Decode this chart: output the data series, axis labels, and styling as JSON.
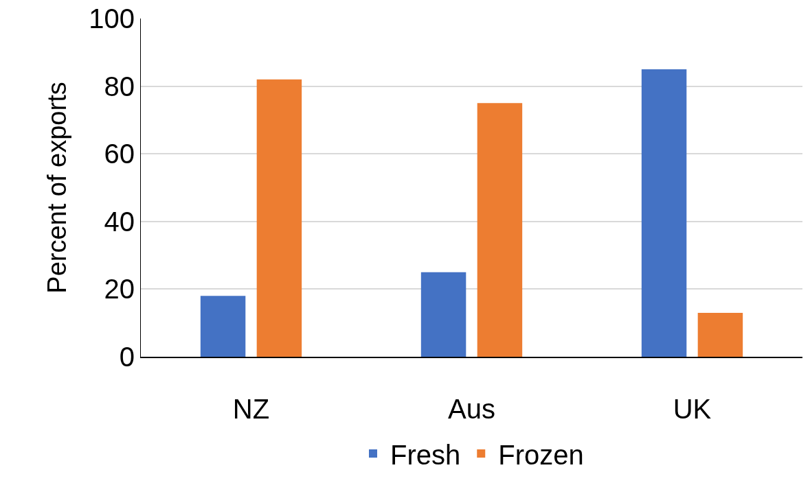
{
  "chart_data": {
    "type": "bar",
    "ylabel": "Percent of exports",
    "categories": [
      "NZ",
      "Aus",
      "UK"
    ],
    "series": [
      {
        "name": "Fresh",
        "color": "#4472c4",
        "values": [
          18,
          25,
          85
        ]
      },
      {
        "name": "Frozen",
        "color": "#ed7d31",
        "values": [
          82,
          75,
          13
        ]
      }
    ],
    "ylim": [
      0,
      100
    ],
    "yticks": [
      0,
      20,
      40,
      60,
      80,
      100
    ],
    "grid": "y",
    "legend": "bottom"
  }
}
